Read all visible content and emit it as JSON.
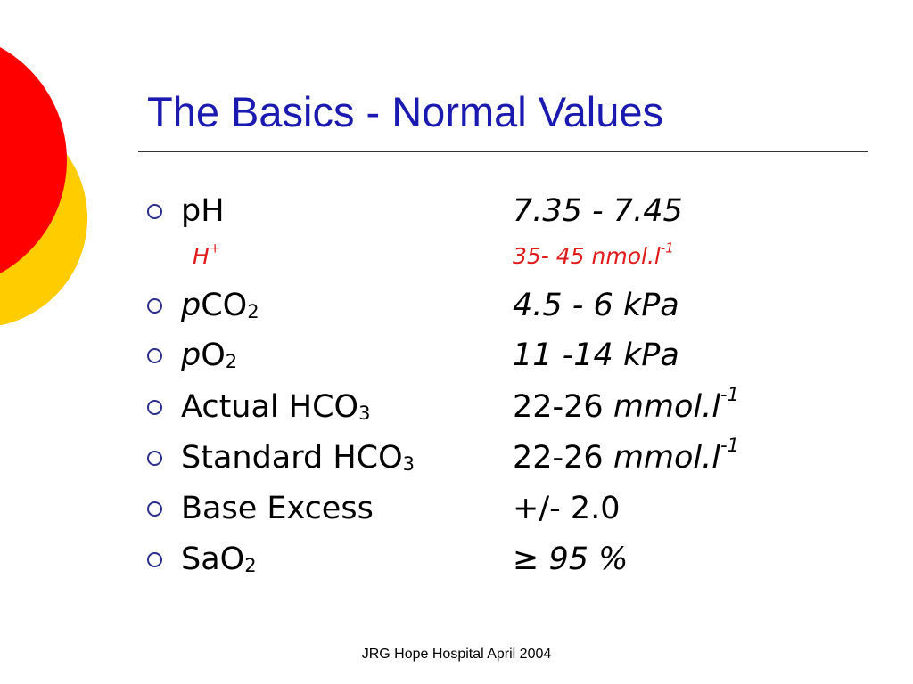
{
  "slide": {
    "title": "The Basics - Normal Values",
    "footer": "JRG Hope Hospital April 2004",
    "colors": {
      "title": "#1a1ab0",
      "sub_item": "#e11b1b",
      "bullet": "#2a2f8a",
      "circle_red": "#ff0000",
      "circle_yellow": "#ffcc00"
    },
    "bullet_icon": "hollow-circle-bullet",
    "items": [
      {
        "label_a": "pH",
        "label_sub": "",
        "value": "7.35 - 7.45"
      },
      {
        "label_a": "H",
        "label_sup": "+",
        "value": "35- 45 nmol.l",
        "value_sup": "-1"
      },
      {
        "label_italic": "p",
        "label_a": "CO",
        "label_sub": "2",
        "value": "4.5 - 6 kPa"
      },
      {
        "label_italic": "p",
        "label_a": "O",
        "label_sub": "2",
        "value": "11 -14 kPa"
      },
      {
        "label_a": "Actual HCO",
        "label_sub": "3",
        "value_plain": "22-26 ",
        "value_italic": "mmol.l",
        "value_sup": "-1"
      },
      {
        "label_a": "Standard HCO",
        "label_sub": "3",
        "value_plain": "22-26 ",
        "value_italic": "mmol.l",
        "value_sup": "-1"
      },
      {
        "label_a": "Base Excess",
        "value": "+/- 2.0"
      },
      {
        "label_a": "SaO",
        "label_sub": "2",
        "value_plain": "≥ ",
        "value_italic": "95 %"
      }
    ]
  }
}
